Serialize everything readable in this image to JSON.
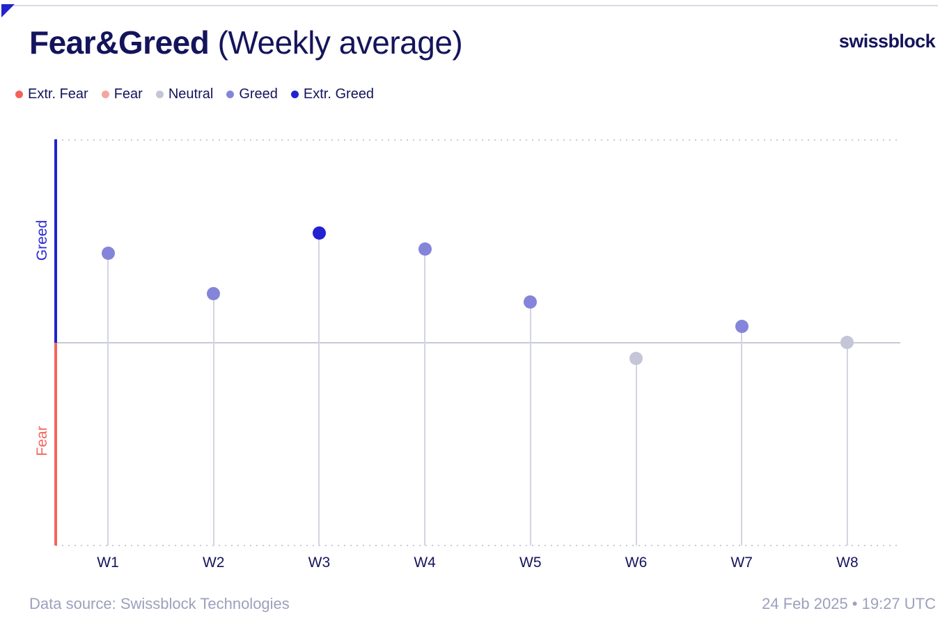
{
  "header": {
    "title_bold": "Fear&Greed",
    "title_suffix": " (Weekly average)",
    "brand": "swissblock"
  },
  "legend": {
    "items": [
      "Extr. Fear",
      "Fear",
      "Neutral",
      "Greed",
      "Extr. Greed"
    ]
  },
  "category_colors": {
    "Extr. Fear": "#f2635a",
    "Fear": "#f4a5a0",
    "Neutral": "#c4c6d7",
    "Greed": "#8484da",
    "Extr. Greed": "#2222d2"
  },
  "chart_data": {
    "type": "scatter",
    "subtype": "lollipop",
    "title": "Fear&Greed (Weekly average)",
    "categories": [
      "W1",
      "W2",
      "W3",
      "W4",
      "W5",
      "W6",
      "W7",
      "W8"
    ],
    "series": [
      {
        "name": "Fear & Greed weekly average",
        "values": [
          72,
          62,
          77,
          73,
          60,
          46,
          54,
          50
        ]
      }
    ],
    "point_categories": [
      "Greed",
      "Greed",
      "Extr. Greed",
      "Greed",
      "Greed",
      "Neutral",
      "Greed",
      "Neutral"
    ],
    "xlabel": "",
    "ylabel": "",
    "ylim": [
      0,
      100
    ],
    "yticks": [
      100,
      50,
      0
    ],
    "midline": 50,
    "grid": "dotted lines at 0 and 100, solid line at 50",
    "legend_position": "top-left",
    "zone_labels": {
      "upper": "Greed",
      "lower": "Fear"
    }
  },
  "footer": {
    "source": "Data source: Swissblock Technologies",
    "timestamp": "24 Feb 2025 • 19:27 UTC"
  }
}
